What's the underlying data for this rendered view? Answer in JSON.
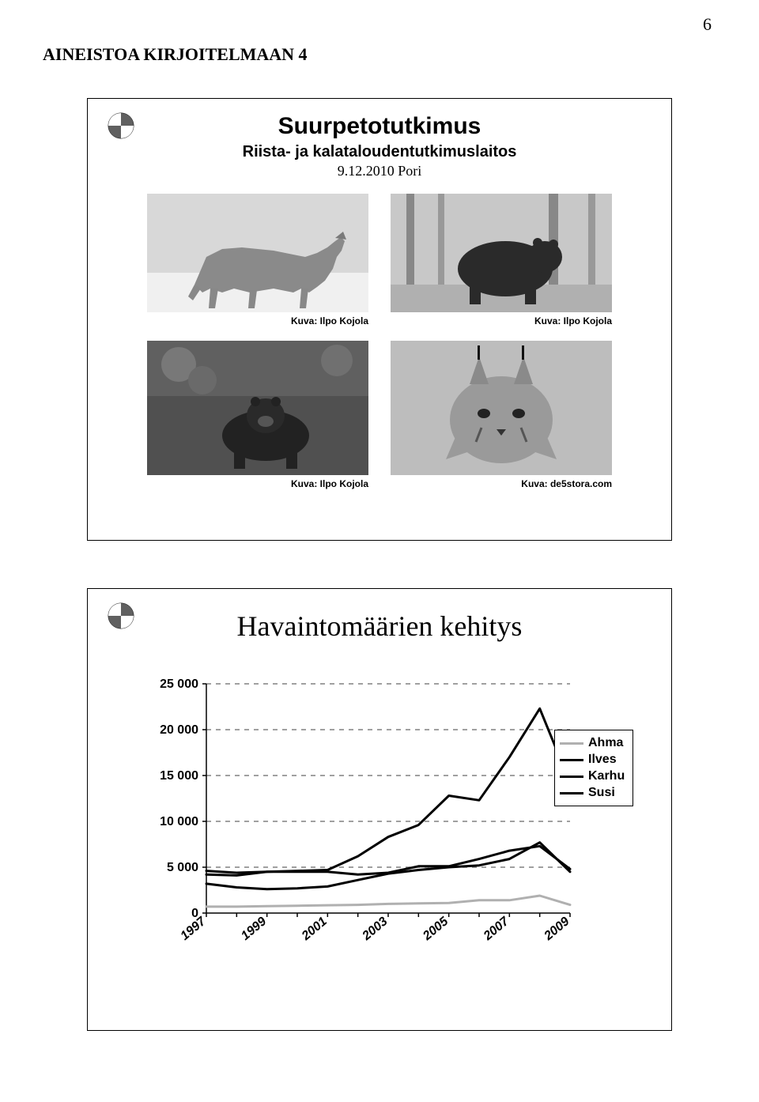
{
  "page_number": "6",
  "heading": "AINEISTOA KIRJOITELMAAN 4",
  "slide1": {
    "title": "Suurpetotutkimus",
    "subtitle": "Riista- ja kalataloudentutkimuslaitos",
    "date": "9.12.2010 Pori",
    "captions": [
      "Kuva: Ilpo Kojola",
      "Kuva: Ilpo Kojola",
      "Kuva: Ilpo Kojola",
      "Kuva: de5stora.com"
    ]
  },
  "chart": {
    "title": "Havaintomäärien kehitys",
    "type": "line",
    "ylim": [
      0,
      25000
    ],
    "ytick_step": 5000,
    "yticks": [
      "0",
      "5 000",
      "10 000",
      "15 000",
      "20 000",
      "25 000"
    ],
    "xticks": [
      "1997",
      "1999",
      "2001",
      "2003",
      "2005",
      "2007",
      "2009"
    ],
    "x_count": 13,
    "grid_color": "#808080",
    "grid_dash": "6,6",
    "background_color": "#ffffff",
    "label_fontsize": 16,
    "label_fontweight": "bold",
    "legend": [
      {
        "label": "Ahma",
        "color": "#b0b0b0",
        "width": 3
      },
      {
        "label": "Ilves",
        "color": "#000000",
        "width": 3
      },
      {
        "label": "Karhu",
        "color": "#000000",
        "width": 3
      },
      {
        "label": "Susi",
        "color": "#000000",
        "width": 3
      }
    ],
    "series": {
      "Ahma": {
        "color": "#b0b0b0",
        "width": 3,
        "values": [
          700,
          700,
          750,
          800,
          850,
          900,
          1000,
          1050,
          1100,
          1400,
          1400,
          1900,
          900
        ]
      },
      "Susi": {
        "color": "#000000",
        "width": 3,
        "values": [
          3200,
          2800,
          2600,
          2700,
          2900,
          3600,
          4300,
          4700,
          5000,
          5200,
          5900,
          7700,
          4500
        ]
      },
      "Karhu": {
        "color": "#000000",
        "width": 3,
        "values": [
          4200,
          4100,
          4500,
          4500,
          4500,
          4200,
          4400,
          5100,
          5100,
          5900,
          6800,
          7300,
          4800
        ]
      },
      "Ilves": {
        "color": "#000000",
        "width": 3,
        "values": [
          4600,
          4400,
          4500,
          4600,
          4700,
          6200,
          8300,
          9600,
          12800,
          12300,
          17000,
          22300,
          14200
        ]
      }
    }
  }
}
